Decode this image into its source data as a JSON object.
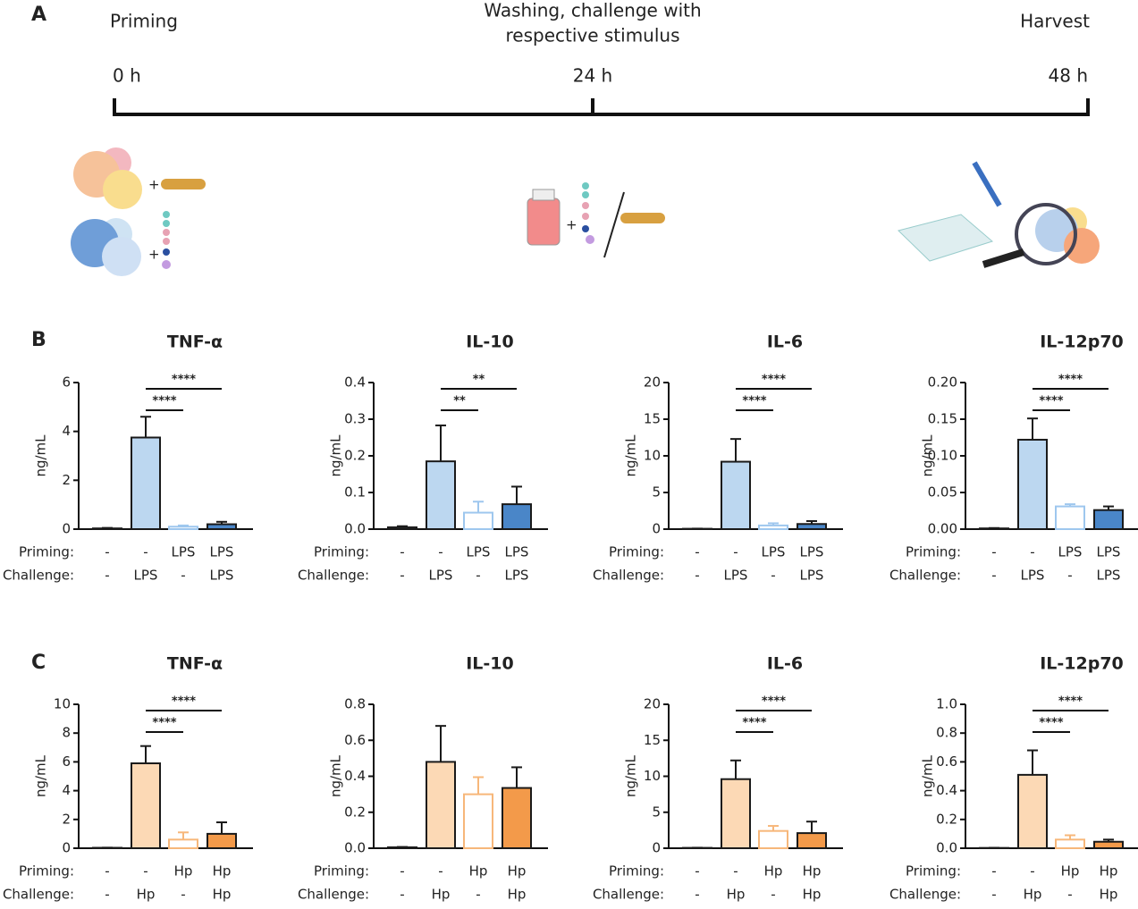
{
  "panel_labels": [
    "A",
    "B",
    "C"
  ],
  "timeline": {
    "stages": [
      {
        "label": [
          "Priming"
        ],
        "time": "0 h"
      },
      {
        "label": [
          "Washing, challenge with",
          "respective stimulus"
        ],
        "time": "24 h"
      },
      {
        "label": [
          "Harvest"
        ],
        "time": "48 h"
      }
    ]
  },
  "chart_data": [
    {
      "type": "bar",
      "title": "TNF-α",
      "ylabel": "ng/mL",
      "row_labels": [
        "Priming:",
        "Challenge:"
      ],
      "priming": [
        "-",
        "-",
        "LPS",
        "LPS"
      ],
      "challenge": [
        "-",
        "LPS",
        "-",
        "LPS"
      ],
      "values": [
        0.03,
        3.75,
        0.1,
        0.2
      ],
      "errors": [
        0.02,
        0.85,
        0.05,
        0.1
      ],
      "colors": [
        "#bcd7f0",
        "#bcd7f0",
        "#9ec7ee",
        "#4a86c8"
      ],
      "filled": [
        true,
        true,
        false,
        true
      ],
      "ylim": [
        0,
        6
      ],
      "yticks": [
        0,
        2,
        4,
        6
      ],
      "comparisons": [
        {
          "groups": [
            1,
            2
          ],
          "label": "****"
        },
        {
          "groups": [
            1,
            3
          ],
          "label": "****"
        }
      ]
    },
    {
      "type": "bar",
      "title": "IL-10",
      "ylabel": "ng/mL",
      "row_labels": [
        "Priming:",
        "Challenge:"
      ],
      "priming": [
        "-",
        "-",
        "LPS",
        "LPS"
      ],
      "challenge": [
        "-",
        "LPS",
        "-",
        "LPS"
      ],
      "values": [
        0.005,
        0.185,
        0.045,
        0.068
      ],
      "errors": [
        0.003,
        0.098,
        0.03,
        0.048
      ],
      "colors": [
        "#bcd7f0",
        "#bcd7f0",
        "#9ec7ee",
        "#4a86c8"
      ],
      "filled": [
        true,
        true,
        false,
        true
      ],
      "ylim": [
        0,
        0.4
      ],
      "yticks": [
        {
          "value": 0,
          "label": "0.0"
        },
        0.1,
        0.2,
        0.3,
        0.4
      ],
      "comparisons": [
        {
          "groups": [
            1,
            2
          ],
          "label": "**"
        },
        {
          "groups": [
            1,
            3
          ],
          "label": "**"
        }
      ]
    },
    {
      "type": "bar",
      "title": "IL-6",
      "ylabel": "ng/mL",
      "row_labels": [
        "Priming:",
        "Challenge:"
      ],
      "priming": [
        "-",
        "-",
        "LPS",
        "LPS"
      ],
      "challenge": [
        "-",
        "LPS",
        "-",
        "LPS"
      ],
      "values": [
        0.05,
        9.2,
        0.5,
        0.7
      ],
      "errors": [
        0.02,
        3.1,
        0.3,
        0.4
      ],
      "colors": [
        "#bcd7f0",
        "#bcd7f0",
        "#9ec7ee",
        "#4a86c8"
      ],
      "filled": [
        true,
        true,
        false,
        true
      ],
      "ylim": [
        0,
        20
      ],
      "yticks": [
        0,
        5,
        10,
        15,
        20
      ],
      "comparisons": [
        {
          "groups": [
            1,
            2
          ],
          "label": "****"
        },
        {
          "groups": [
            1,
            3
          ],
          "label": "****"
        }
      ]
    },
    {
      "type": "bar",
      "title": "IL-12p70",
      "ylabel": "ng/mL",
      "row_labels": [
        "Priming:",
        "Challenge:"
      ],
      "priming": [
        "-",
        "-",
        "LPS",
        "LPS"
      ],
      "challenge": [
        "-",
        "LPS",
        "-",
        "LPS"
      ],
      "values": [
        0.001,
        0.122,
        0.031,
        0.026
      ],
      "errors": [
        0.0005,
        0.029,
        0.003,
        0.005
      ],
      "colors": [
        "#bcd7f0",
        "#bcd7f0",
        "#9ec7ee",
        "#4a86c8"
      ],
      "filled": [
        true,
        true,
        false,
        true
      ],
      "ylim": [
        0,
        0.2
      ],
      "yticks": [
        {
          "value": 0,
          "label": "0.00"
        },
        {
          "value": 0.05,
          "label": "0.05"
        },
        {
          "value": 0.1,
          "label": "0.10"
        },
        {
          "value": 0.15,
          "label": "0.15"
        },
        {
          "value": 0.2,
          "label": "0.20"
        }
      ],
      "comparisons": [
        {
          "groups": [
            1,
            2
          ],
          "label": "****"
        },
        {
          "groups": [
            1,
            3
          ],
          "label": "****"
        }
      ]
    },
    {
      "type": "bar",
      "title": "TNF-α",
      "ylabel": "ng/mL",
      "row_labels": [
        "Priming:",
        "Challenge:"
      ],
      "priming": [
        "-",
        "-",
        "Hp",
        "Hp"
      ],
      "challenge": [
        "-",
        "Hp",
        "-",
        "Hp"
      ],
      "values": [
        0.03,
        5.9,
        0.6,
        1.0
      ],
      "errors": [
        0.01,
        1.2,
        0.5,
        0.8
      ],
      "colors": [
        "#fcd9b5",
        "#fcd9b5",
        "#f7b77a",
        "#f39a4a"
      ],
      "filled": [
        true,
        true,
        false,
        true
      ],
      "ylim": [
        0,
        10
      ],
      "yticks": [
        0,
        2,
        4,
        6,
        8,
        10
      ],
      "comparisons": [
        {
          "groups": [
            1,
            2
          ],
          "label": "****"
        },
        {
          "groups": [
            1,
            3
          ],
          "label": "****"
        }
      ]
    },
    {
      "type": "bar",
      "title": "IL-10",
      "ylabel": "ng/mL",
      "row_labels": [
        "Priming:",
        "Challenge:"
      ],
      "priming": [
        "-",
        "-",
        "Hp",
        "Hp"
      ],
      "challenge": [
        "-",
        "Hp",
        "-",
        "Hp"
      ],
      "values": [
        0.005,
        0.48,
        0.3,
        0.335
      ],
      "errors": [
        0.002,
        0.2,
        0.095,
        0.115
      ],
      "colors": [
        "#fcd9b5",
        "#fcd9b5",
        "#f7b77a",
        "#f39a4a"
      ],
      "filled": [
        true,
        true,
        false,
        true
      ],
      "ylim": [
        0,
        0.8
      ],
      "yticks": [
        {
          "value": 0,
          "label": "0.0"
        },
        0.2,
        0.4,
        0.6,
        0.8
      ],
      "comparisons": []
    },
    {
      "type": "bar",
      "title": "IL-6",
      "ylabel": "ng/mL",
      "row_labels": [
        "Priming:",
        "Challenge:"
      ],
      "priming": [
        "-",
        "-",
        "Hp",
        "Hp"
      ],
      "challenge": [
        "-",
        "Hp",
        "-",
        "Hp"
      ],
      "values": [
        0.05,
        9.6,
        2.4,
        2.1
      ],
      "errors": [
        0.02,
        2.6,
        0.7,
        1.6
      ],
      "colors": [
        "#fcd9b5",
        "#fcd9b5",
        "#f7b77a",
        "#f39a4a"
      ],
      "filled": [
        true,
        true,
        false,
        true
      ],
      "ylim": [
        0,
        20
      ],
      "yticks": [
        0,
        5,
        10,
        15,
        20
      ],
      "comparisons": [
        {
          "groups": [
            1,
            2
          ],
          "label": "****"
        },
        {
          "groups": [
            1,
            3
          ],
          "label": "****"
        }
      ]
    },
    {
      "type": "bar",
      "title": "IL-12p70",
      "ylabel": "ng/mL",
      "row_labels": [
        "Priming:",
        "Challenge:"
      ],
      "priming": [
        "-",
        "-",
        "Hp",
        "Hp"
      ],
      "challenge": [
        "-",
        "Hp",
        "-",
        "Hp"
      ],
      "values": [
        0.002,
        0.51,
        0.06,
        0.045
      ],
      "errors": [
        0.001,
        0.17,
        0.03,
        0.015
      ],
      "colors": [
        "#fcd9b5",
        "#fcd9b5",
        "#f7b77a",
        "#f39a4a"
      ],
      "filled": [
        true,
        true,
        false,
        true
      ],
      "ylim": [
        0,
        1
      ],
      "yticks": [
        {
          "value": 0,
          "label": "0.0"
        },
        0.2,
        0.4,
        0.6,
        0.8,
        {
          "value": 1,
          "label": "1.0"
        }
      ],
      "comparisons": [
        {
          "groups": [
            1,
            2
          ],
          "label": "****"
        },
        {
          "groups": [
            1,
            3
          ],
          "label": "****"
        }
      ]
    }
  ]
}
